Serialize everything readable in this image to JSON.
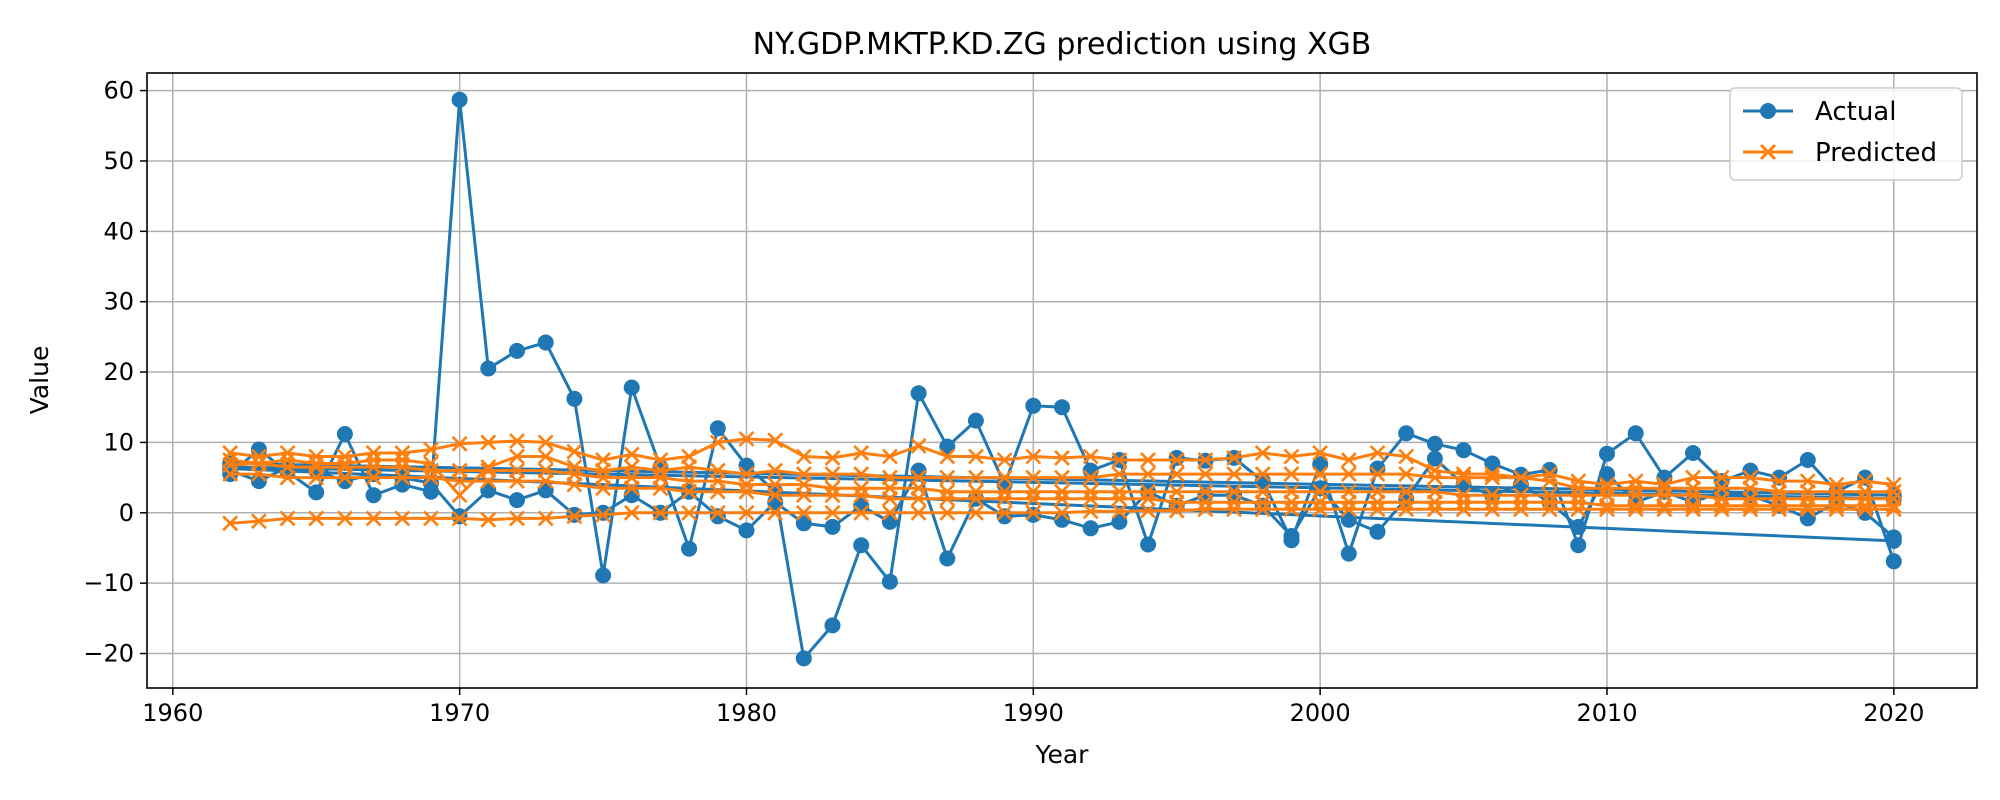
{
  "chart_data": {
    "type": "line",
    "title": "NY.GDP.MKTP.KD.ZG prediction using XGB",
    "xlabel": "Year",
    "ylabel": "Value",
    "xlim": [
      1959.1,
      2022.9
    ],
    "ylim": [
      -24.9,
      62.5
    ],
    "xticks": [
      1960,
      1970,
      1980,
      1990,
      2000,
      2010,
      2020
    ],
    "yticks": [
      -20,
      -10,
      0,
      10,
      20,
      30,
      40,
      50,
      60
    ],
    "grid": true,
    "legend_position": "top-right",
    "colors": {
      "actual": "#1f77b4",
      "predicted": "#ff7f0e",
      "grid": "#b0b0b0"
    },
    "series": [
      {
        "name": "Actual",
        "marker": "circle",
        "segments": [
          {
            "x": [
              1962,
              1963,
              1964,
              1965,
              1966,
              1967,
              1968,
              1969,
              1970,
              1971,
              1972,
              1973,
              1974,
              1975,
              1976,
              1977,
              1978,
              1979,
              1980,
              1981,
              1982,
              1983,
              1984,
              1985,
              1986,
              1987,
              1988,
              1989,
              1990,
              1991,
              1992,
              1993,
              1994,
              1995,
              1996,
              1997,
              1998,
              1999,
              2000,
              2001,
              2002,
              2003,
              2004,
              2005,
              2006,
              2007,
              2008,
              2009,
              2010,
              2011,
              2012,
              2013,
              2014,
              2015,
              2016,
              2017,
              2018,
              2019,
              2020
            ],
            "y": [
              5.5,
              9.0,
              5.8,
              2.9,
              11.2,
              2.5,
              4.0,
              3.0,
              58.7,
              20.5,
              23.0,
              24.2,
              16.2,
              -8.9,
              17.8,
              6.5,
              -5.1,
              12.0,
              6.7,
              3.0,
              -20.7,
              -16.0,
              -4.6,
              -9.8,
              17.0,
              9.4,
              13.1,
              4.0,
              15.2,
              15.0,
              6.0,
              7.5,
              -4.5,
              7.8,
              7.4,
              7.8,
              4.5,
              -3.9,
              6.9,
              -5.8,
              6.3,
              11.3,
              9.8,
              8.9,
              7.0,
              5.4,
              6.1,
              -4.6,
              8.4,
              11.3,
              5.0,
              8.5,
              4.5,
              6.0,
              5.0,
              7.5,
              3.0,
              5.0,
              -6.9
            ]
          },
          {
            "x": [
              1962,
              1963,
              1964,
              1965,
              1966,
              1967,
              1968,
              1969,
              1970,
              1971,
              1972,
              1973,
              1974,
              1975,
              1976,
              1977,
              1978,
              1979,
              1980,
              1981,
              1982,
              1983,
              1984,
              1985,
              1986,
              1987,
              1988,
              1989,
              1990,
              1991,
              1992,
              1993,
              1994,
              1995,
              1996,
              1997,
              1998,
              1999,
              2000,
              2001,
              2002,
              2003,
              2004,
              2005,
              2006,
              2007,
              2008,
              2009,
              2010,
              2011,
              2012,
              2013,
              2014,
              2015,
              2016,
              2017,
              2018,
              2019,
              2020
            ],
            "y": [
              6.0,
              4.5,
              6.5,
              6.0,
              4.5,
              5.5,
              5.0,
              4.2,
              -0.5,
              3.2,
              1.8,
              3.2,
              -0.3,
              0.0,
              2.5,
              0.0,
              3.0,
              -0.5,
              -2.5,
              1.5,
              -1.5,
              -2.0,
              1.0,
              -1.3,
              6.0,
              -6.5,
              2.0,
              -0.5,
              -0.3,
              -1.0,
              -2.2,
              -1.3,
              3.0,
              1.0,
              2.5,
              2.5,
              1.0,
              -3.3,
              3.5,
              -1.0,
              -2.7,
              2.0,
              7.7,
              4.0,
              2.5,
              4.0,
              1.5,
              -2.0,
              5.5,
              1.5,
              3.0,
              1.5,
              3.0,
              2.5,
              1.0,
              -0.8,
              1.5,
              0.0,
              -3.5
            ]
          },
          {
            "x": [
              1962,
              2020
            ],
            "y": [
              6.3,
              -4.0
            ]
          },
          {
            "x": [
              1962,
              2020
            ],
            "y": [
              7.0,
              2.5
            ]
          },
          {
            "x": [
              1962,
              2020
            ],
            "y": [
              6.5,
              2.0
            ]
          }
        ]
      },
      {
        "name": "Predicted",
        "marker": "x",
        "segments": [
          {
            "x": [
              1962,
              1963,
              1964,
              1965,
              1966,
              1967,
              1968,
              1969,
              1970,
              1971,
              1972,
              1973,
              1974,
              1975,
              1976,
              1977,
              1978,
              1979,
              1980,
              1981,
              1982,
              1983,
              1984,
              1985,
              1986,
              1987,
              1988,
              1989,
              1990,
              1991,
              1992,
              1993,
              1994,
              1995,
              1996,
              1997,
              1998,
              1999,
              2000,
              2001,
              2002,
              2003,
              2004,
              2005,
              2006,
              2007,
              2008,
              2009,
              2010,
              2011,
              2012,
              2013,
              2014,
              2015,
              2016,
              2017,
              2018,
              2019,
              2020
            ],
            "y": [
              8.5,
              8.0,
              8.5,
              8.0,
              8.0,
              8.5,
              8.5,
              9.0,
              9.8,
              10.0,
              10.2,
              10.0,
              8.7,
              7.5,
              8.3,
              7.5,
              8.0,
              10.0,
              10.5,
              10.3,
              8.0,
              7.8,
              8.5,
              8.0,
              9.5,
              8.0,
              8.0,
              7.5,
              8.0,
              7.8,
              8.0,
              7.5,
              7.5,
              7.5,
              7.5,
              7.8,
              8.5,
              8.0,
              8.5,
              7.5,
              8.5,
              8.0,
              6.0,
              5.5,
              5.5,
              5.0,
              5.5,
              4.5,
              4.0,
              4.5,
              4.0,
              5.0,
              5.0,
              5.0,
              4.5,
              4.5,
              4.0,
              4.5,
              4.0
            ]
          },
          {
            "x": [
              1962,
              1963,
              1964,
              1965,
              1966,
              1967,
              1968,
              1969,
              1970,
              1971,
              1972,
              1973,
              1974,
              1975,
              1976,
              1977,
              1978,
              1979,
              1980,
              1981,
              1982,
              1983,
              1984,
              1985,
              1986,
              1987,
              1988,
              1989,
              1990,
              1991,
              1992,
              1993,
              1994,
              1995,
              1996,
              1997,
              1998,
              1999,
              2000,
              2001,
              2002,
              2003,
              2004,
              2005,
              2006,
              2007,
              2008,
              2009,
              2010,
              2011,
              2012,
              2013,
              2014,
              2015,
              2016,
              2017,
              2018,
              2019,
              2020
            ],
            "y": [
              -1.5,
              -1.2,
              -0.8,
              -0.8,
              -0.8,
              -0.8,
              -0.8,
              -0.8,
              -0.8,
              -1.0,
              -0.8,
              -0.8,
              -0.5,
              -0.3,
              0.0,
              0.0,
              0.0,
              0.0,
              0.0,
              0.0,
              0.0,
              0.0,
              0.0,
              0.0,
              0.0,
              0.0,
              0.0,
              0.0,
              0.0,
              0.0,
              0.2,
              0.2,
              0.3,
              0.3,
              0.5,
              0.5,
              0.5,
              0.5,
              0.5,
              0.5,
              0.5,
              0.5,
              0.5,
              0.5,
              0.5,
              0.5,
              0.5,
              0.5,
              0.5,
              0.5,
              0.5,
              0.5,
              0.5,
              0.5,
              0.5,
              0.5,
              0.5,
              0.5,
              0.5
            ]
          },
          {
            "x": [
              1962,
              1963,
              1964,
              1965,
              1966,
              1967,
              1968,
              1969,
              1970,
              1971,
              1972,
              1973,
              1974,
              1975,
              1976,
              1977,
              1978,
              1979,
              1980,
              1981,
              1982,
              1983,
              1984,
              1985,
              1986,
              1987,
              1988,
              1989,
              1990,
              1991,
              1992,
              1993,
              1994,
              1995,
              1996,
              1997,
              1998,
              1999,
              2000,
              2001,
              2002,
              2003,
              2004,
              2005,
              2006,
              2007,
              2008,
              2009,
              2010,
              2011,
              2012,
              2013,
              2014,
              2015,
              2016,
              2017,
              2018,
              2019,
              2020
            ],
            "y": [
              7.5,
              7.0,
              7.5,
              7.0,
              7.0,
              7.5,
              7.5,
              7.0,
              2.5,
              6.5,
              8.0,
              8.0,
              6.5,
              6.0,
              6.5,
              6.0,
              6.5,
              6.0,
              5.5,
              6.0,
              5.5,
              5.5,
              5.5,
              5.0,
              5.0,
              5.0,
              5.0,
              5.0,
              5.0,
              5.0,
              5.0,
              5.5,
              5.5,
              5.5,
              5.5,
              5.5,
              5.5,
              5.5,
              5.5,
              5.5,
              5.5,
              5.5,
              5.0,
              5.0,
              5.0,
              5.0,
              4.5,
              3.5,
              3.5,
              3.5,
              3.5,
              3.5,
              3.5,
              3.5,
              3.0,
              3.0,
              3.0,
              3.0,
              3.0
            ]
          },
          {
            "x": [
              1962,
              1963,
              1964,
              1965,
              1966,
              1967,
              1968,
              1969,
              1970,
              1971,
              1972,
              1973,
              1974,
              1975,
              1976,
              1977,
              1978,
              1979,
              1980,
              1981,
              1982,
              1983,
              1984,
              1985,
              1986,
              1987,
              1988,
              1989,
              1990,
              1991,
              1992,
              1993,
              1994,
              1995,
              1996,
              1997,
              1998,
              1999,
              2000,
              2001,
              2002,
              2003,
              2004,
              2005,
              2006,
              2007,
              2008,
              2009,
              2010,
              2011,
              2012,
              2013,
              2014,
              2015,
              2016,
              2017,
              2018,
              2019,
              2020
            ],
            "y": [
              6.8,
              7.0,
              6.5,
              6.5,
              6.5,
              6.5,
              6.5,
              6.0,
              6.0,
              6.0,
              6.0,
              6.0,
              5.5,
              5.0,
              5.0,
              5.0,
              4.5,
              4.5,
              4.0,
              4.0,
              4.0,
              3.5,
              3.5,
              3.5,
              3.5,
              3.0,
              3.0,
              3.0,
              3.0,
              3.0,
              3.0,
              3.0,
              3.0,
              3.0,
              3.0,
              3.0,
              3.0,
              3.0,
              3.0,
              3.0,
              3.0,
              3.0,
              3.0,
              2.5,
              2.5,
              2.5,
              2.5,
              2.5,
              2.5,
              2.5,
              2.5,
              2.5,
              2.0,
              2.0,
              2.0,
              2.0,
              2.0,
              2.0,
              2.0
            ]
          },
          {
            "x": [
              1962,
              1963,
              1964,
              1965,
              1966,
              1967,
              1968,
              1969,
              1970,
              1971,
              1972,
              1973,
              1974,
              1975,
              1976,
              1977,
              1978,
              1979,
              1980,
              1981,
              1982,
              1983,
              1984,
              1985,
              1986,
              1987,
              1988,
              1989,
              1990,
              1991,
              1992,
              1993,
              1994,
              1995,
              1996,
              1997,
              1998,
              1999,
              2000,
              2001,
              2002,
              2003,
              2004,
              2005,
              2006,
              2007,
              2008,
              2009,
              2010,
              2011,
              2012,
              2013,
              2014,
              2015,
              2016,
              2017,
              2018,
              2019,
              2020
            ],
            "y": [
              5.5,
              5.5,
              5.0,
              5.0,
              5.0,
              5.0,
              5.0,
              5.0,
              4.5,
              4.5,
              4.5,
              4.5,
              4.0,
              3.5,
              3.5,
              3.5,
              3.0,
              3.0,
              3.0,
              2.5,
              2.5,
              2.5,
              2.5,
              2.0,
              2.0,
              2.0,
              2.0,
              2.0,
              2.0,
              2.0,
              2.0,
              2.0,
              2.0,
              1.5,
              1.5,
              1.5,
              1.5,
              1.5,
              1.5,
              1.5,
              1.5,
              1.5,
              1.5,
              1.5,
              1.5,
              1.5,
              1.5,
              1.5,
              1.0,
              1.0,
              1.0,
              1.0,
              1.0,
              1.0,
              1.0,
              1.0,
              1.0,
              1.0,
              1.0
            ]
          }
        ]
      }
    ]
  }
}
